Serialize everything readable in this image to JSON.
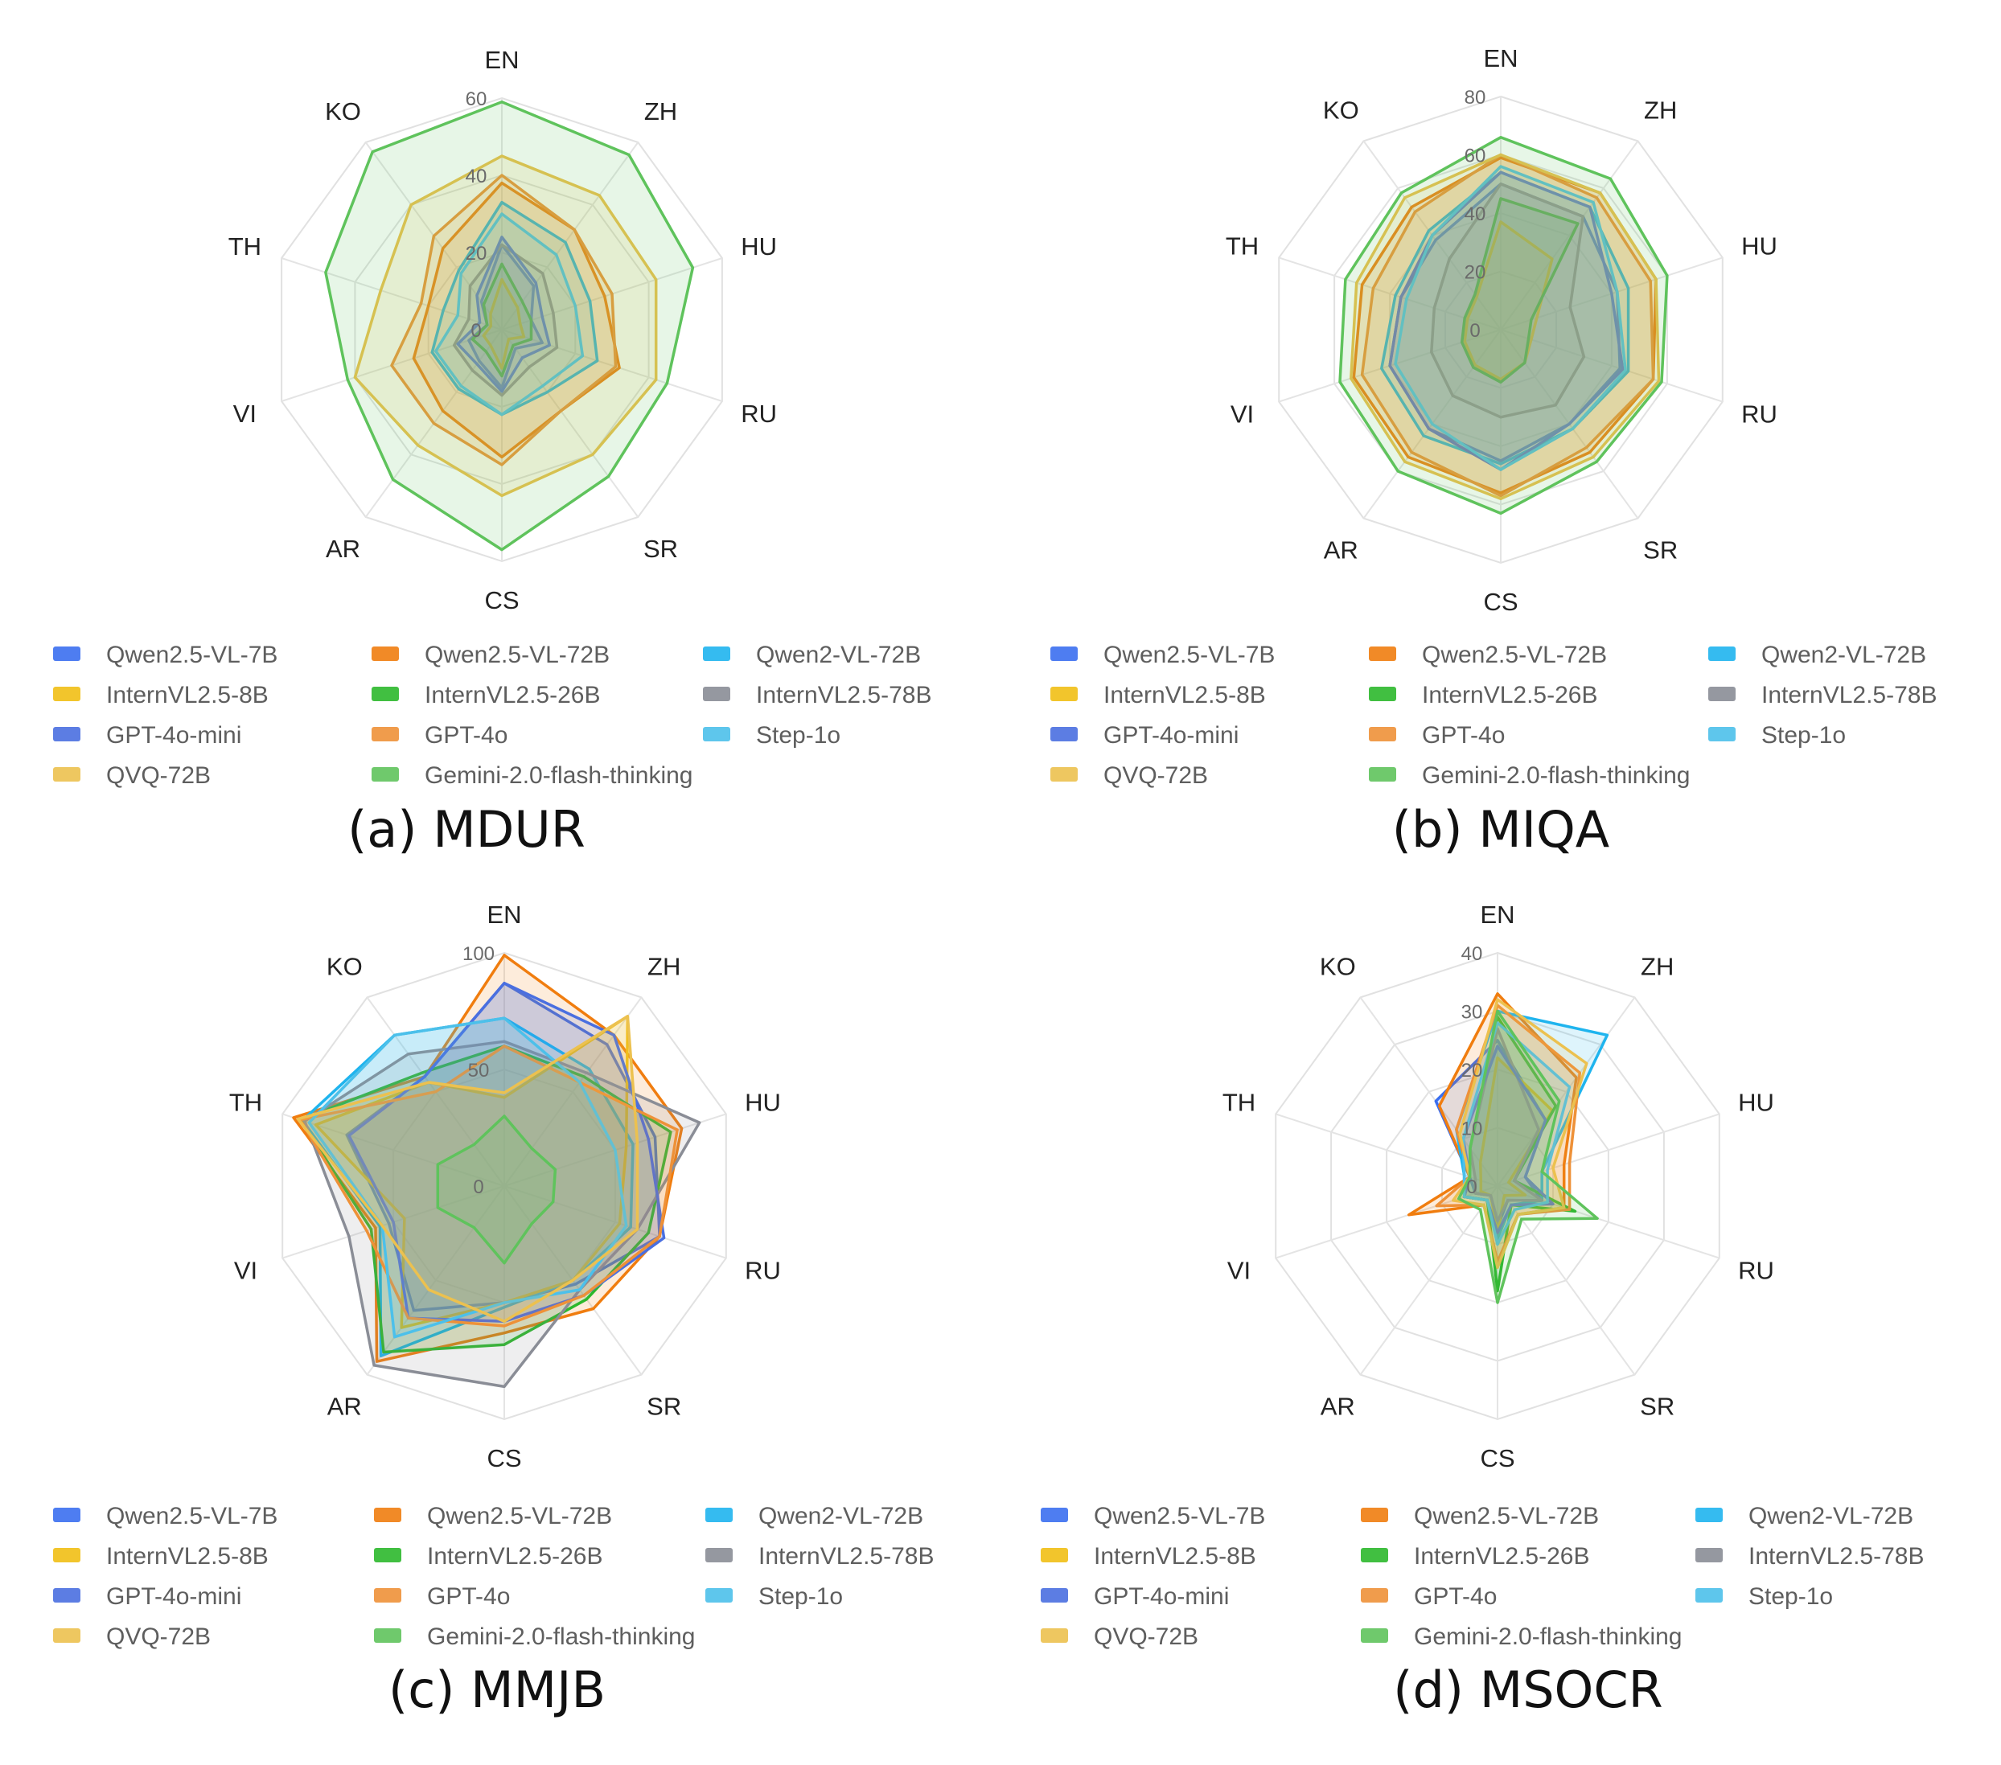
{
  "colors": {
    "Qwen2.5-VL-7B": "#3b6ff0",
    "Qwen2.5-VL-72B": "#f07d0f",
    "Qwen2-VL-72B": "#1fb4ee",
    "InternVL2.5-8B": "#f1bf15",
    "InternVL2.5-26B": "#2cb82c",
    "InternVL2.5-78B": "#8a8d96",
    "GPT-4o-mini": "#4a6fe0",
    "GPT-4o": "#ee9138",
    "Step-1o": "#4cc0ea",
    "QVQ-72B": "#ecc14f",
    "Gemini-2.0-flash-thinking": "#5fc35c"
  },
  "chart_data": [
    {
      "type": "radar",
      "caption": "(a) MDUR",
      "axes": [
        "EN",
        "ZH",
        "HU",
        "RU",
        "SR",
        "CS",
        "AR",
        "VI",
        "TH",
        "KO"
      ],
      "ticks": [
        "0",
        "20",
        "40",
        "60"
      ],
      "rmax": 60,
      "legend": [
        "Qwen2.5-VL-7B",
        "Qwen2.5-VL-72B",
        "Qwen2-VL-72B",
        "InternVL2.5-8B",
        "InternVL2.5-26B",
        "InternVL2.5-78B",
        "GPT-4o-mini",
        "GPT-4o",
        "Step-1o",
        "QVQ-72B",
        "Gemini-2.0-flash-thinking"
      ],
      "series": [
        {
          "name": "Qwen2.5-VL-7B",
          "values": [
            22,
            14,
            8,
            11,
            6,
            15,
            10,
            9,
            4,
            9
          ]
        },
        {
          "name": "Qwen2.5-VL-72B",
          "values": [
            38,
            32,
            28,
            32,
            26,
            33,
            26,
            24,
            20,
            26
          ]
        },
        {
          "name": "Qwen2-VL-72B",
          "values": [
            33,
            28,
            24,
            26,
            20,
            22,
            19,
            19,
            16,
            19
          ]
        },
        {
          "name": "InternVL2.5-8B",
          "values": [
            13,
            7,
            5,
            6,
            3,
            10,
            5,
            5,
            3,
            5
          ]
        },
        {
          "name": "InternVL2.5-26B",
          "values": [
            17,
            9,
            8,
            8,
            5,
            12,
            7,
            8,
            4,
            8
          ]
        },
        {
          "name": "InternVL2.5-78B",
          "values": [
            22,
            18,
            14,
            15,
            12,
            17,
            13,
            13,
            9,
            14
          ]
        },
        {
          "name": "GPT-4o-mini",
          "values": [
            24,
            15,
            11,
            13,
            9,
            16,
            11,
            12,
            6,
            11
          ]
        },
        {
          "name": "GPT-4o",
          "values": [
            40,
            32,
            30,
            31,
            26,
            35,
            30,
            30,
            22,
            30
          ]
        },
        {
          "name": "Step-1o",
          "values": [
            30,
            24,
            20,
            22,
            18,
            22,
            18,
            18,
            12,
            18
          ]
        },
        {
          "name": "QVQ-72B",
          "values": [
            45,
            43,
            42,
            42,
            40,
            43,
            37,
            40,
            33,
            40
          ]
        },
        {
          "name": "Gemini-2.0-flash-thinking",
          "values": [
            59,
            56,
            52,
            45,
            47,
            57,
            48,
            42,
            48,
            57
          ]
        }
      ]
    },
    {
      "type": "radar",
      "caption": "(b) MIQA",
      "axes": [
        "EN",
        "ZH",
        "HU",
        "RU",
        "SR",
        "CS",
        "AR",
        "VI",
        "TH",
        "KO"
      ],
      "ticks": [
        "0",
        "20",
        "40",
        "60",
        "80"
      ],
      "rmax": 80,
      "legend": [
        "Qwen2.5-VL-7B",
        "Qwen2.5-VL-72B",
        "Qwen2-VL-72B",
        "InternVL2.5-8B",
        "InternVL2.5-26B",
        "InternVL2.5-78B",
        "GPT-4o-mini",
        "GPT-4o",
        "Step-1o",
        "QVQ-72B",
        "Gemini-2.0-flash-thinking"
      ],
      "series": [
        {
          "name": "Qwen2.5-VL-7B",
          "values": [
            50,
            48,
            42,
            43,
            40,
            45,
            42,
            40,
            36,
            38
          ]
        },
        {
          "name": "Qwen2.5-VL-72B",
          "values": [
            59,
            58,
            56,
            55,
            52,
            56,
            54,
            53,
            50,
            52
          ]
        },
        {
          "name": "Qwen2-VL-72B",
          "values": [
            54,
            52,
            46,
            46,
            42,
            46,
            45,
            43,
            38,
            42
          ]
        },
        {
          "name": "InternVL2.5-8B",
          "values": [
            37,
            30,
            13,
            11,
            14,
            17,
            15,
            13,
            12,
            14
          ]
        },
        {
          "name": "InternVL2.5-26B",
          "values": [
            45,
            45,
            11,
            10,
            14,
            18,
            16,
            14,
            13,
            15
          ]
        },
        {
          "name": "InternVL2.5-78B",
          "values": [
            50,
            48,
            25,
            30,
            32,
            30,
            28,
            25,
            24,
            30
          ]
        },
        {
          "name": "GPT-4o-mini",
          "values": [
            54,
            52,
            40,
            44,
            40,
            48,
            42,
            40,
            36,
            40
          ]
        },
        {
          "name": "GPT-4o",
          "values": [
            60,
            56,
            54,
            55,
            50,
            57,
            52,
            50,
            46,
            50
          ]
        },
        {
          "name": "Step-1o",
          "values": [
            56,
            54,
            42,
            45,
            42,
            48,
            40,
            38,
            34,
            40
          ]
        },
        {
          "name": "QVQ-72B",
          "values": [
            60,
            58,
            56,
            57,
            54,
            58,
            56,
            54,
            52,
            56
          ]
        },
        {
          "name": "Gemini-2.0-flash-thinking",
          "values": [
            66,
            64,
            60,
            58,
            56,
            63,
            60,
            58,
            56,
            58
          ]
        }
      ]
    },
    {
      "type": "radar",
      "caption": "(c) MMJB",
      "axes": [
        "EN",
        "ZH",
        "HU",
        "RU",
        "SR",
        "CS",
        "AR",
        "VI",
        "TH",
        "KO"
      ],
      "ticks": [
        "0",
        "50",
        "100"
      ],
      "rmax": 100,
      "legend": [
        "Qwen2.5-VL-7B",
        "Qwen2.5-VL-72B",
        "Qwen2-VL-72B",
        "InternVL2.5-8B",
        "InternVL2.5-26B",
        "InternVL2.5-78B",
        "GPT-4o-mini",
        "GPT-4o",
        "Step-1o",
        "QVQ-72B",
        "Gemini-2.0-flash-thinking"
      ],
      "series": [
        {
          "name": "Qwen2.5-VL-7B",
          "values": [
            87,
            75,
            68,
            70,
            52,
            50,
            66,
            52,
            71,
            58
          ]
        },
        {
          "name": "Qwen2.5-VL-72B",
          "values": [
            99,
            80,
            80,
            70,
            65,
            63,
            93,
            58,
            95,
            58
          ]
        },
        {
          "name": "Qwen2-VL-72B",
          "values": [
            72,
            62,
            58,
            57,
            50,
            52,
            90,
            56,
            91,
            80
          ]
        },
        {
          "name": "InternVL2.5-8B",
          "values": [
            38,
            90,
            55,
            52,
            50,
            50,
            75,
            45,
            85,
            55
          ]
        },
        {
          "name": "InternVL2.5-26B",
          "values": [
            60,
            58,
            75,
            65,
            60,
            68,
            88,
            60,
            92,
            60
          ]
        },
        {
          "name": "InternVL2.5-78B",
          "values": [
            62,
            60,
            88,
            60,
            55,
            86,
            95,
            70,
            90,
            70
          ]
        },
        {
          "name": "GPT-4o-mini",
          "values": [
            87,
            80,
            65,
            72,
            58,
            58,
            70,
            50,
            70,
            58
          ]
        },
        {
          "name": "GPT-4o",
          "values": [
            60,
            55,
            78,
            70,
            58,
            60,
            70,
            62,
            92,
            50
          ]
        },
        {
          "name": "Step-1o",
          "values": [
            72,
            55,
            50,
            55,
            55,
            50,
            80,
            55,
            88,
            80
          ]
        },
        {
          "name": "QVQ-72B",
          "values": [
            40,
            90,
            60,
            60,
            50,
            58,
            55,
            55,
            93,
            55
          ]
        },
        {
          "name": "Gemini-2.0-flash-thinking",
          "values": [
            30,
            20,
            23,
            22,
            20,
            33,
            22,
            30,
            30,
            22
          ]
        }
      ]
    },
    {
      "type": "radar",
      "caption": "(d) MSOCR",
      "axes": [
        "EN",
        "ZH",
        "HU",
        "RU",
        "SR",
        "CS",
        "AR",
        "VI",
        "TH",
        "KO"
      ],
      "ticks": [
        "0",
        "10",
        "20",
        "30",
        "40"
      ],
      "rmax": 40,
      "legend": [
        "Qwen2.5-VL-7B",
        "Qwen2.5-VL-72B",
        "Qwen2-VL-72B",
        "InternVL2.5-8B",
        "InternVL2.5-26B",
        "InternVL2.5-78B",
        "GPT-4o-mini",
        "GPT-4o",
        "Step-1o",
        "QVQ-72B",
        "Gemini-2.0-flash-thinking"
      ],
      "series": [
        {
          "name": "Qwen2.5-VL-7B",
          "values": [
            25,
            14,
            5,
            8,
            3,
            7,
            2,
            4,
            5,
            18
          ]
        },
        {
          "name": "Qwen2.5-VL-72B",
          "values": [
            33,
            23,
            12,
            12,
            6,
            13,
            4,
            16,
            5,
            17
          ]
        },
        {
          "name": "Qwen2-VL-72B",
          "values": [
            30,
            32,
            8,
            8,
            4,
            9,
            3,
            6,
            6,
            12
          ]
        },
        {
          "name": "InternVL2.5-8B",
          "values": [
            22,
            16,
            2,
            5,
            2,
            8,
            2,
            3,
            3,
            5
          ]
        },
        {
          "name": "InternVL2.5-26B",
          "values": [
            29,
            17,
            3,
            14,
            4,
            18,
            3,
            6,
            5,
            8
          ]
        },
        {
          "name": "InternVL2.5-78B",
          "values": [
            27,
            12,
            3,
            8,
            3,
            6,
            2,
            4,
            4,
            8
          ]
        },
        {
          "name": "GPT-4o-mini",
          "values": [
            24,
            14,
            5,
            10,
            4,
            8,
            3,
            6,
            5,
            10
          ]
        },
        {
          "name": "GPT-4o",
          "values": [
            31,
            24,
            13,
            13,
            6,
            13,
            4,
            11,
            5,
            12
          ]
        },
        {
          "name": "Step-1o",
          "values": [
            28,
            21,
            9,
            9,
            5,
            10,
            3,
            6,
            6,
            10
          ]
        },
        {
          "name": "QVQ-72B",
          "values": [
            32,
            26,
            10,
            12,
            6,
            14,
            4,
            8,
            5,
            11
          ]
        },
        {
          "name": "Gemini-2.0-flash-thinking",
          "values": [
            30,
            18,
            8,
            18,
            7,
            20,
            5,
            7,
            5,
            8
          ]
        }
      ]
    }
  ]
}
